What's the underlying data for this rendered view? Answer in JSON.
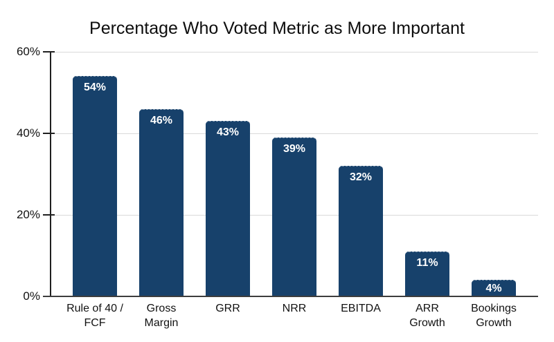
{
  "chart_data": {
    "type": "bar",
    "title": "Percentage Who Voted Metric as More Important",
    "categories": [
      "Rule of 40 /\nFCF",
      "Gross\nMargin",
      "GRR",
      "NRR",
      "EBITDA",
      "ARR\nGrowth",
      "Bookings\nGrowth"
    ],
    "values": [
      54,
      46,
      43,
      39,
      32,
      11,
      4
    ],
    "value_labels": [
      "54%",
      "46%",
      "43%",
      "39%",
      "32%",
      "11%",
      "4%"
    ],
    "xlabel": "",
    "ylabel": "",
    "ylim": [
      0,
      60
    ],
    "y_ticks": [
      {
        "value": 0,
        "label": "0%"
      },
      {
        "value": 20,
        "label": "20%"
      },
      {
        "value": 40,
        "label": "40%"
      },
      {
        "value": 60,
        "label": "60%"
      }
    ],
    "grid": "horizontal",
    "legend": "none",
    "colors": {
      "bar": "#17416b",
      "value_label": "#ffffff",
      "gridline": "#d9d9d9",
      "axis": "#1f1f1f",
      "baseline": "#3d3d3d",
      "title": "#0d0d0d",
      "tick_label": "#111111"
    }
  }
}
